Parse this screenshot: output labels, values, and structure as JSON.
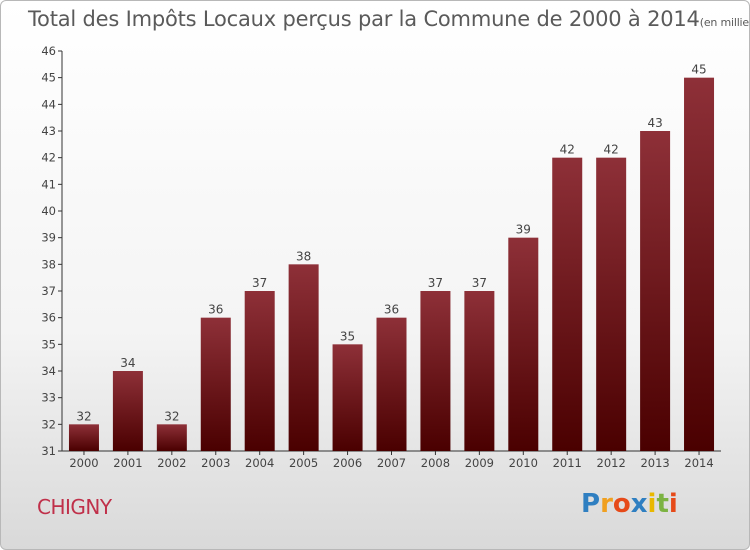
{
  "header": {
    "title": "Total des Impôts Locaux perçus par la Commune de 2000 à 2014",
    "unit": "(en milliers d'€)"
  },
  "footer": {
    "commune": "CHIGNY",
    "logo_letters": [
      "P",
      "r",
      "o",
      "x",
      "i",
      "t",
      "i"
    ],
    "logo_colors": [
      "#2f7fc1",
      "#f0a020",
      "#e64a19",
      "#2f7fc1",
      "#e9b800",
      "#7cb342",
      "#e64a19"
    ]
  },
  "colors": {
    "bar_top": "#8e3038",
    "bar_bottom": "#4a0000",
    "axis": "#333333",
    "grid": "#bbbbbb"
  },
  "chart_data": {
    "type": "bar",
    "title": "Total des Impôts Locaux perçus par la Commune de 2000 à 2014",
    "xlabel": "",
    "ylabel": "",
    "categories": [
      "2000",
      "2001",
      "2002",
      "2003",
      "2004",
      "2005",
      "2006",
      "2007",
      "2008",
      "2009",
      "2010",
      "2011",
      "2012",
      "2013",
      "2014"
    ],
    "values": [
      32,
      34,
      32,
      36,
      37,
      38,
      35,
      36,
      37,
      37,
      39,
      42,
      42,
      43,
      45
    ],
    "ylim": [
      31,
      46
    ],
    "yticks": [
      31,
      32,
      33,
      34,
      35,
      36,
      37,
      38,
      39,
      40,
      41,
      42,
      43,
      44,
      45,
      46
    ],
    "data_labels": true,
    "grid": false
  }
}
